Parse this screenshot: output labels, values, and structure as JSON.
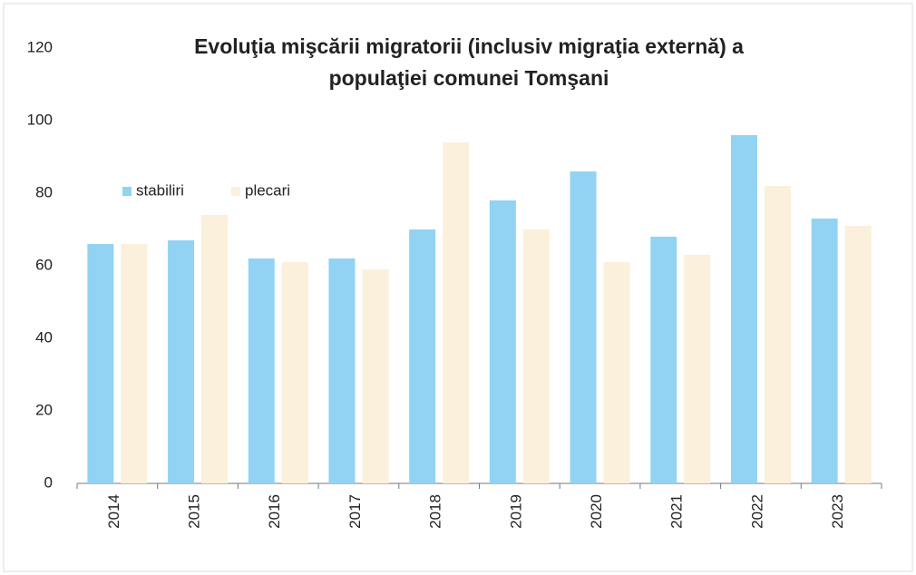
{
  "chart_data": {
    "type": "bar",
    "title": [
      "Evoluţia mişcării migratorii  (inclusiv migraţia externă) a",
      "populaţiei comunei Tomşani"
    ],
    "categories": [
      "2014",
      "2015",
      "2016",
      "2017",
      "2018",
      "2019",
      "2020",
      "2021",
      "2022",
      "2023"
    ],
    "series": [
      {
        "name": "stabiliri",
        "color": "#92d3f3",
        "values": [
          66,
          67,
          62,
          62,
          70,
          78,
          86,
          68,
          96,
          73
        ]
      },
      {
        "name": "plecari",
        "color": "#fbf0db",
        "values": [
          66,
          74,
          61,
          59,
          94,
          70,
          61,
          63,
          82,
          71
        ]
      }
    ],
    "ylim": [
      0,
      120
    ],
    "yticks": [
      0,
      20,
      40,
      60,
      80,
      100,
      120
    ],
    "grid": false,
    "legend": "top-left"
  }
}
